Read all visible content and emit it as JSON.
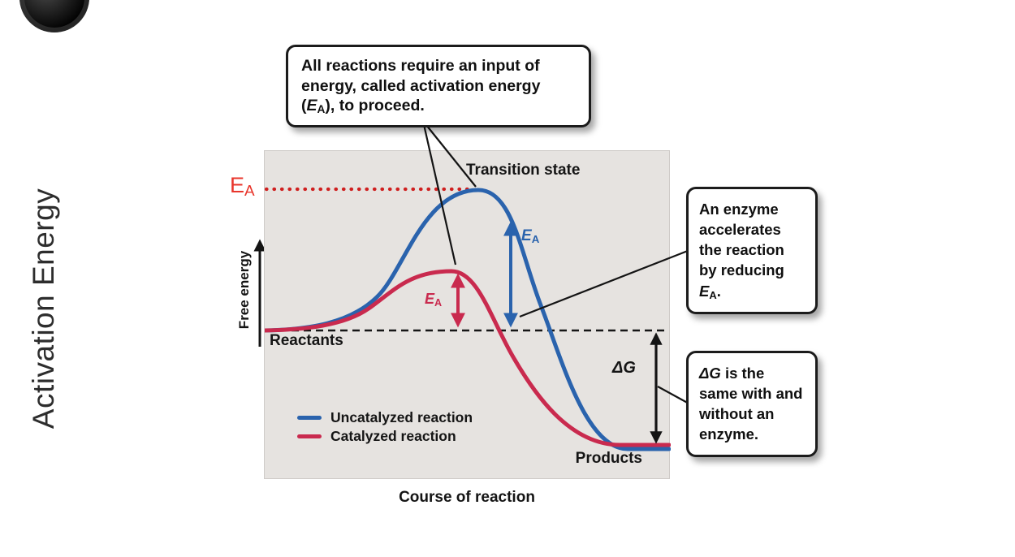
{
  "slide": {
    "title": "Activation Energy"
  },
  "figure": {
    "y_axis_label": "Free energy",
    "x_axis_label": "Course of reaction",
    "transition_state_label": "Transition state",
    "reactants_label": "Reactants",
    "products_label": "Products",
    "ea_axis_label": "E_A",
    "ea_uncatalyzed_label": "E_A",
    "ea_catalyzed_label": "E_A",
    "delta_g_label": "ΔG",
    "legend": [
      {
        "label": "Uncatalyzed reaction"
      },
      {
        "label": "Catalyzed reaction"
      }
    ],
    "callouts": {
      "activation_energy": "All reactions require an input of energy, called activation energy (E_A), to proceed.",
      "enzyme": "An enzyme accelerates the reaction by reducing E_A.",
      "delta_g": "ΔG is the same with and without an enzyme."
    }
  },
  "colors": {
    "uncatalyzed_blue": "#2a63ad",
    "catalyzed_red": "#c92a4e",
    "ea_dotted_red": "#cf1f1f",
    "ea_axis_red": "#e8352b",
    "panel_bg": "#e6e3e0",
    "ink": "#141414"
  }
}
